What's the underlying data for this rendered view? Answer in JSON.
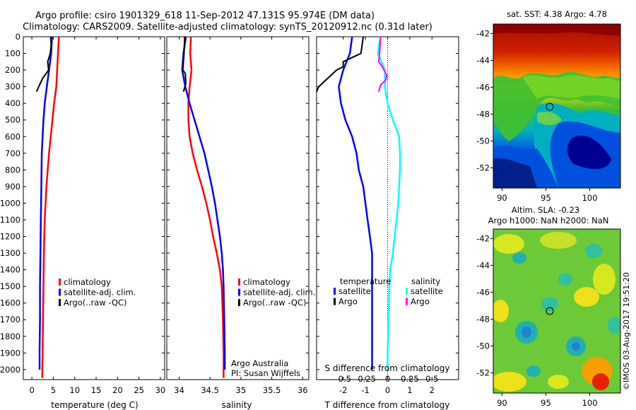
{
  "title_line1": "Argo profile: csiro 1901329_618 11-Sep-2012 47.131S 95.974E (DM data)",
  "title_line2": "Climatology: CARS2009. Satellite-adjusted climatology: synTS_20120912.nc (0.31d later)",
  "watermark": "©IMOS 03-Aug-2017 19:51:20",
  "colors": {
    "climatology": "#ff0000",
    "satellite": "#0000ff",
    "argo": "#000000",
    "sal_satellite": "#00ffff",
    "sal_argo": "#ff00ff"
  },
  "depth_ticks": [
    0,
    100,
    200,
    300,
    400,
    500,
    600,
    700,
    800,
    900,
    1000,
    1100,
    1200,
    1300,
    1400,
    1500,
    1600,
    1700,
    1800,
    1900,
    2000
  ],
  "chart_data": [
    {
      "type": "line",
      "id": "temperature",
      "xlabel": "temperature (deg C)",
      "xlim": [
        -2,
        31
      ],
      "ylim": [
        2060,
        0
      ],
      "xticks": [
        0,
        5,
        10,
        15,
        20,
        25,
        30
      ],
      "legend": [
        "climatology",
        "satellite-adj. clim.",
        "Argo(..raw -QC)"
      ],
      "series": [
        {
          "name": "climatology",
          "points": [
            [
              6.3,
              0
            ],
            [
              6.2,
              50
            ],
            [
              6.0,
              150
            ],
            [
              5.7,
              300
            ],
            [
              5.2,
              400
            ],
            [
              4.8,
              500
            ],
            [
              4.4,
              600
            ],
            [
              4.0,
              700
            ],
            [
              3.7,
              800
            ],
            [
              3.4,
              900
            ],
            [
              3.2,
              1000
            ],
            [
              3.0,
              1100
            ],
            [
              2.9,
              1200
            ],
            [
              2.8,
              1300
            ],
            [
              2.7,
              1500
            ],
            [
              2.6,
              1700
            ],
            [
              2.5,
              1900
            ],
            [
              2.4,
              2050
            ]
          ]
        },
        {
          "name": "satellite-adj. clim.",
          "points": [
            [
              4.7,
              0
            ],
            [
              4.5,
              100
            ],
            [
              4.0,
              200
            ],
            [
              3.5,
              300
            ],
            [
              3.0,
              400
            ],
            [
              2.7,
              500
            ],
            [
              2.5,
              600
            ],
            [
              2.3,
              700
            ],
            [
              2.2,
              900
            ],
            [
              2.1,
              1100
            ],
            [
              2.0,
              1300
            ],
            [
              1.9,
              1500
            ],
            [
              1.9,
              1700
            ],
            [
              1.8,
              1900
            ],
            [
              1.8,
              2000
            ]
          ]
        },
        {
          "name": "Argo(..raw -QC)",
          "points": [
            [
              4.4,
              0
            ],
            [
              4.5,
              50
            ],
            [
              4.3,
              100
            ],
            [
              3.7,
              150
            ],
            [
              3.9,
              200
            ],
            [
              2.5,
              250
            ],
            [
              1.6,
              300
            ],
            [
              1.1,
              330
            ]
          ]
        }
      ]
    },
    {
      "type": "line",
      "id": "salinity",
      "xlabel": "salinity",
      "xlim": [
        33.8,
        36.1
      ],
      "ylim": [
        2060,
        0
      ],
      "xticks": [
        34,
        34.5,
        35,
        35.5,
        36
      ],
      "legend": [
        "climatology",
        "satellite-adj. clim.",
        "Argo(..raw -QC)"
      ],
      "annotations": [
        "Argo Australia",
        "PI: Susan Wijffels"
      ],
      "series": [
        {
          "name": "climatology",
          "points": [
            [
              34.19,
              0
            ],
            [
              34.18,
              100
            ],
            [
              34.2,
              200
            ],
            [
              34.17,
              300
            ],
            [
              34.15,
              400
            ],
            [
              34.15,
              500
            ],
            [
              34.17,
              600
            ],
            [
              34.22,
              700
            ],
            [
              34.29,
              800
            ],
            [
              34.37,
              900
            ],
            [
              34.44,
              1000
            ],
            [
              34.5,
              1100
            ],
            [
              34.55,
              1200
            ],
            [
              34.61,
              1300
            ],
            [
              34.66,
              1400
            ],
            [
              34.69,
              1500
            ],
            [
              34.71,
              1700
            ],
            [
              34.72,
              1900
            ],
            [
              34.72,
              2050
            ]
          ]
        },
        {
          "name": "satellite-adj. clim.",
          "points": [
            [
              34.11,
              0
            ],
            [
              34.07,
              100
            ],
            [
              34.05,
              200
            ],
            [
              34.1,
              300
            ],
            [
              34.17,
              400
            ],
            [
              34.25,
              500
            ],
            [
              34.33,
              600
            ],
            [
              34.41,
              700
            ],
            [
              34.47,
              800
            ],
            [
              34.53,
              900
            ],
            [
              34.58,
              1000
            ],
            [
              34.62,
              1100
            ],
            [
              34.66,
              1200
            ],
            [
              34.69,
              1300
            ],
            [
              34.71,
              1400
            ],
            [
              34.72,
              1500
            ],
            [
              34.73,
              1700
            ],
            [
              34.74,
              1900
            ],
            [
              34.74,
              2000
            ]
          ]
        },
        {
          "name": "Argo(..raw -QC)",
          "points": [
            [
              34.09,
              0
            ],
            [
              34.08,
              100
            ],
            [
              34.06,
              200
            ],
            [
              34.1,
              220
            ],
            [
              34.11,
              280
            ],
            [
              34.07,
              330
            ]
          ]
        }
      ]
    },
    {
      "type": "line",
      "id": "difference",
      "xlabel": "T difference from climatology",
      "xlabel_top": "S difference from climatology",
      "xlim": [
        -3.2,
        3.2
      ],
      "ylim": [
        2060,
        0
      ],
      "xticks": [
        -2,
        -1,
        0,
        1,
        2
      ],
      "xticks_top": [
        -0.5,
        -0.25,
        0,
        0.25,
        0.5
      ],
      "legend_headers": [
        "temperature",
        "salinity"
      ],
      "legend": [
        "satellite",
        "Argo",
        "satellite",
        "Argo"
      ],
      "series": [
        {
          "name": "satellite",
          "group": "temperature",
          "points": [
            [
              -1.6,
              0
            ],
            [
              -1.7,
              100
            ],
            [
              -2.0,
              200
            ],
            [
              -2.2,
              300
            ],
            [
              -2.1,
              400
            ],
            [
              -1.9,
              500
            ],
            [
              -1.6,
              600
            ],
            [
              -1.4,
              700
            ],
            [
              -1.3,
              800
            ],
            [
              -1.1,
              900
            ],
            [
              -1.0,
              1000
            ],
            [
              -0.9,
              1100
            ],
            [
              -0.8,
              1200
            ],
            [
              -0.7,
              1300
            ],
            [
              -0.7,
              1500
            ],
            [
              -0.7,
              1700
            ],
            [
              -0.7,
              1900
            ],
            [
              -0.7,
              2000
            ]
          ]
        },
        {
          "name": "Argo",
          "group": "temperature",
          "points": [
            [
              -1.1,
              0
            ],
            [
              -1.2,
              100
            ],
            [
              -2.0,
              150
            ],
            [
              -2.0,
              180
            ],
            [
              -2.3,
              200
            ],
            [
              -3.1,
              300
            ],
            [
              -3.2,
              330
            ]
          ]
        },
        {
          "name": "satellite",
          "group": "salinity",
          "points": [
            [
              -0.08,
              0
            ],
            [
              -0.11,
              100
            ],
            [
              -0.03,
              200
            ],
            [
              -0.03,
              300
            ],
            [
              0.0,
              400
            ],
            [
              0.06,
              500
            ],
            [
              0.13,
              600
            ],
            [
              0.14,
              700
            ],
            [
              0.14,
              800
            ],
            [
              0.13,
              900
            ],
            [
              0.12,
              1000
            ],
            [
              0.1,
              1100
            ],
            [
              0.08,
              1200
            ],
            [
              0.06,
              1300
            ],
            [
              0.03,
              1400
            ],
            [
              0.02,
              1500
            ],
            [
              0.01,
              1700
            ],
            [
              0.0,
              1900
            ],
            [
              0.0,
              2000
            ]
          ]
        },
        {
          "name": "Argo",
          "group": "salinity",
          "points": [
            [
              -0.08,
              0
            ],
            [
              -0.09,
              100
            ],
            [
              -0.1,
              150
            ],
            [
              -0.06,
              180
            ],
            [
              -0.04,
              200
            ],
            [
              -0.01,
              230
            ],
            [
              -0.02,
              260
            ],
            [
              -0.08,
              290
            ],
            [
              -0.1,
              330
            ]
          ]
        }
      ]
    },
    {
      "type": "heatmap",
      "id": "sst_map",
      "title": "sat. SST: 4.38 Argo: 4.78",
      "xlim": [
        89,
        103.5
      ],
      "ylim": [
        -53.5,
        -41.3
      ],
      "xticks": [
        90,
        95,
        100
      ],
      "yticks": [
        -42,
        -44,
        -46,
        -48,
        -50,
        -52
      ],
      "argo_position": {
        "lon": 95.97,
        "lat": -47.13
      }
    },
    {
      "type": "heatmap",
      "id": "sla_map",
      "title_line1": "Altim. SLA: -0.23",
      "title_line2": "Argo h1000: NaN h2000: NaN",
      "xlim": [
        89,
        103.5
      ],
      "ylim": [
        -53.5,
        -41.3
      ],
      "xticks": [
        90,
        95,
        100
      ],
      "yticks": [
        -42,
        -44,
        -46,
        -48,
        -50,
        -52
      ],
      "argo_position": {
        "lon": 95.97,
        "lat": -47.13
      }
    }
  ]
}
